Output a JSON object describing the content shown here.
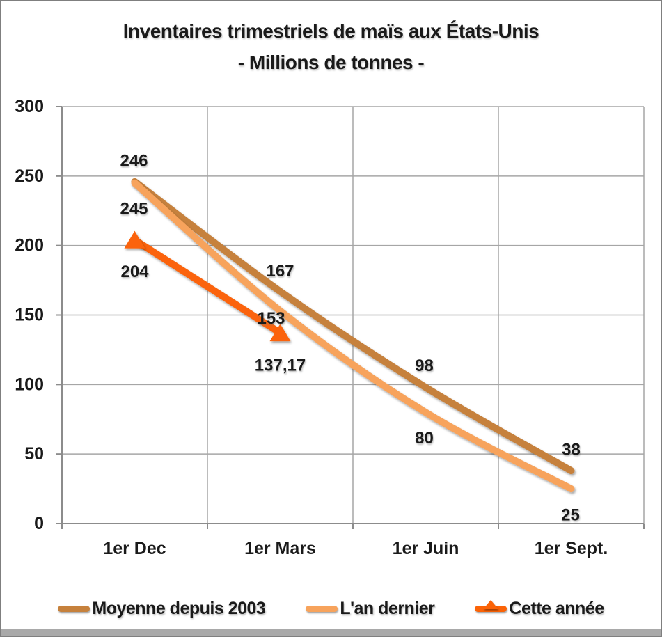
{
  "title": {
    "line1": "Inventaires trimestriels de maïs aux États-Unis",
    "line2": "- Millions de tonnes -"
  },
  "chart_data": {
    "type": "line",
    "smooth": true,
    "title": "Inventaires trimestriels de maïs aux États-Unis",
    "subtitle": "- Millions de tonnes -",
    "categories": [
      "1er Dec",
      "1er Mars",
      "1er Juin",
      "1er Sept."
    ],
    "series": [
      {
        "name": "Moyenne depuis 2003",
        "values": [
          246,
          167,
          98,
          38
        ],
        "labels": [
          "246",
          "167",
          "98",
          "38"
        ],
        "color": "#C6813C",
        "marker": "none"
      },
      {
        "name": "L'an dernier",
        "values": [
          245,
          153,
          80,
          25
        ],
        "labels": [
          "245",
          "153",
          "80",
          "25"
        ],
        "color": "#F7A35C",
        "marker": "none"
      },
      {
        "name": "Cette année",
        "values": [
          204,
          137.17
        ],
        "labels": [
          "204",
          "137,17"
        ],
        "color": "#FB6307",
        "marker": "triangle"
      }
    ],
    "ylim": [
      0,
      300
    ],
    "yticks": [
      0,
      50,
      100,
      150,
      200,
      250,
      300
    ],
    "xlabel": "",
    "ylabel": "",
    "grid": true,
    "legend_position": "bottom",
    "colors": {
      "axis": "#8C8C8C",
      "grid": "#A6A6A6",
      "text": "#1A1A1A",
      "background": "#FFFFFF"
    }
  }
}
